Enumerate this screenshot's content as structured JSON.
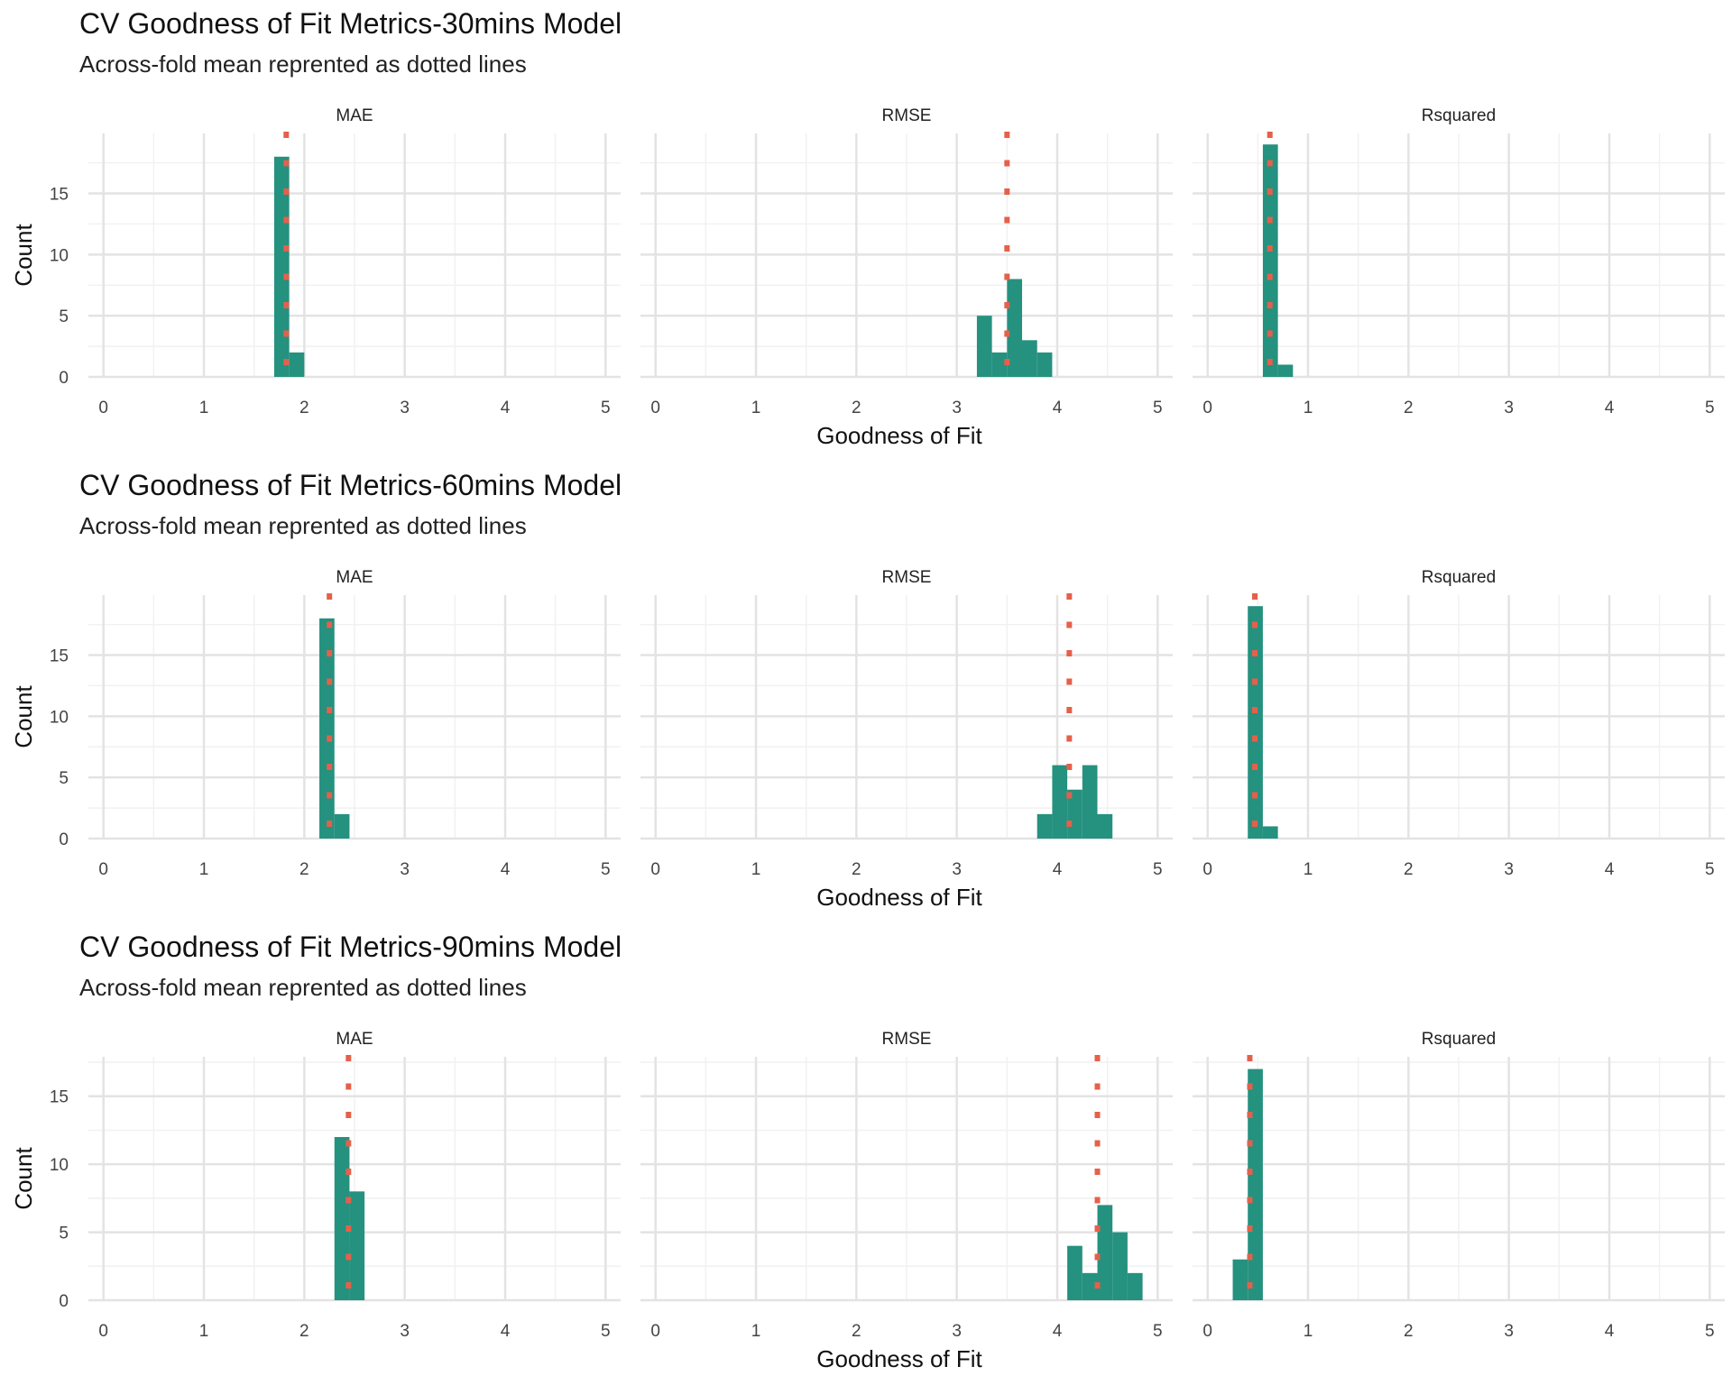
{
  "chart_data": [
    {
      "type": "bar",
      "title": "CV Goodness of Fit Metrics-30mins Model",
      "subtitle": "Across-fold mean reprented as dotted lines",
      "xlabel": "Goodness of Fit",
      "ylabel": "Count",
      "xlim": [
        -0.15,
        5.15
      ],
      "ylim": [
        0,
        19.9
      ],
      "x_ticks": [
        "0",
        "1",
        "2",
        "3",
        "4",
        "5"
      ],
      "y_ticks": [
        "0",
        "5",
        "10",
        "15"
      ],
      "panels": [
        {
          "label": "MAE",
          "mean": 1.82,
          "bars": [
            {
              "x0": 1.7,
              "x1": 1.85,
              "count": 18
            },
            {
              "x0": 1.85,
              "x1": 2.0,
              "count": 2
            }
          ]
        },
        {
          "label": "RMSE",
          "mean": 3.5,
          "bars": [
            {
              "x0": 3.2,
              "x1": 3.35,
              "count": 5
            },
            {
              "x0": 3.35,
              "x1": 3.5,
              "count": 2
            },
            {
              "x0": 3.5,
              "x1": 3.65,
              "count": 8
            },
            {
              "x0": 3.65,
              "x1": 3.8,
              "count": 3
            },
            {
              "x0": 3.8,
              "x1": 3.95,
              "count": 2
            }
          ]
        },
        {
          "label": "Rsquared",
          "mean": 0.62,
          "bars": [
            {
              "x0": 0.55,
              "x1": 0.7,
              "count": 19
            },
            {
              "x0": 0.7,
              "x1": 0.85,
              "count": 1
            }
          ]
        }
      ]
    },
    {
      "type": "bar",
      "title": "CV Goodness of Fit Metrics-60mins Model",
      "subtitle": "Across-fold mean reprented as dotted lines",
      "xlabel": "Goodness of Fit",
      "ylabel": "Count",
      "xlim": [
        -0.15,
        5.15
      ],
      "ylim": [
        0,
        19.9
      ],
      "x_ticks": [
        "0",
        "1",
        "2",
        "3",
        "4",
        "5"
      ],
      "y_ticks": [
        "0",
        "5",
        "10",
        "15"
      ],
      "panels": [
        {
          "label": "MAE",
          "mean": 2.25,
          "bars": [
            {
              "x0": 2.15,
              "x1": 2.3,
              "count": 18
            },
            {
              "x0": 2.3,
              "x1": 2.45,
              "count": 2
            }
          ]
        },
        {
          "label": "RMSE",
          "mean": 4.12,
          "bars": [
            {
              "x0": 3.8,
              "x1": 3.95,
              "count": 2
            },
            {
              "x0": 3.95,
              "x1": 4.1,
              "count": 6
            },
            {
              "x0": 4.1,
              "x1": 4.25,
              "count": 4
            },
            {
              "x0": 4.25,
              "x1": 4.4,
              "count": 6
            },
            {
              "x0": 4.4,
              "x1": 4.55,
              "count": 2
            }
          ]
        },
        {
          "label": "Rsquared",
          "mean": 0.47,
          "bars": [
            {
              "x0": 0.4,
              "x1": 0.55,
              "count": 19
            },
            {
              "x0": 0.55,
              "x1": 0.7,
              "count": 1
            }
          ]
        }
      ]
    },
    {
      "type": "bar",
      "title": "CV Goodness of Fit Metrics-90mins Model",
      "subtitle": "Across-fold mean reprented as dotted lines",
      "xlabel": "Goodness of Fit",
      "ylabel": "Count",
      "xlim": [
        -0.15,
        5.15
      ],
      "ylim": [
        0,
        17.9
      ],
      "x_ticks": [
        "0",
        "1",
        "2",
        "3",
        "4",
        "5"
      ],
      "y_ticks": [
        "0",
        "5",
        "10",
        "15"
      ],
      "panels": [
        {
          "label": "MAE",
          "mean": 2.44,
          "bars": [
            {
              "x0": 2.3,
              "x1": 2.45,
              "count": 12
            },
            {
              "x0": 2.45,
              "x1": 2.6,
              "count": 8
            }
          ]
        },
        {
          "label": "RMSE",
          "mean": 4.4,
          "bars": [
            {
              "x0": 4.1,
              "x1": 4.25,
              "count": 4
            },
            {
              "x0": 4.25,
              "x1": 4.4,
              "count": 2
            },
            {
              "x0": 4.4,
              "x1": 4.55,
              "count": 7
            },
            {
              "x0": 4.55,
              "x1": 4.7,
              "count": 5
            },
            {
              "x0": 4.7,
              "x1": 4.85,
              "count": 2
            }
          ]
        },
        {
          "label": "Rsquared",
          "mean": 0.42,
          "bars": [
            {
              "x0": 0.25,
              "x1": 0.4,
              "count": 3
            },
            {
              "x0": 0.4,
              "x1": 0.55,
              "count": 17
            }
          ]
        }
      ]
    }
  ],
  "colors": {
    "bar": "#25917F",
    "mean_line": "#E5604A",
    "grid_major": "#E3E3E3",
    "grid_minor": "#F1F1F1"
  }
}
